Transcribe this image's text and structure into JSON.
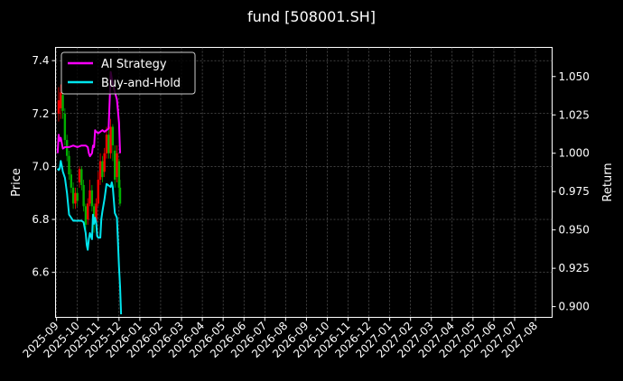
{
  "chart_data": {
    "type": "line",
    "title": "fund [508001.SH]",
    "ylabel_left": "Price",
    "ylabel_right": "Return",
    "x_ticks": [
      "2025-09",
      "2025-10",
      "2025-11",
      "2025-12",
      "2026-01",
      "2026-02",
      "2026-03",
      "2026-04",
      "2026-05",
      "2026-06",
      "2026-07",
      "2026-08",
      "2026-09",
      "2026-10",
      "2026-11",
      "2026-12",
      "2027-01",
      "2027-02",
      "2027-03",
      "2027-04",
      "2027-05",
      "2027-06",
      "2027-07",
      "2027-08"
    ],
    "y_left_ticks": [
      "6.6",
      "6.8",
      "7.0",
      "7.2",
      "7.4"
    ],
    "y_left_range": [
      6.43,
      7.45
    ],
    "y_right_ticks": [
      "0.900",
      "0.925",
      "0.950",
      "0.975",
      "1.000",
      "1.025",
      "1.050"
    ],
    "y_right_range": [
      0.893,
      1.069
    ],
    "x_range_months": [
      -0.05,
      23.8
    ],
    "grid": true,
    "legend_position": "top-left",
    "legend": [
      {
        "label": "AI Strategy",
        "color": "#ff00ff"
      },
      {
        "label": "Buy-and-Hold",
        "color": "#00e5ee"
      }
    ],
    "series": [
      {
        "name": "AI Strategy",
        "axis": "right",
        "color": "#ff00ff",
        "points": [
          [
            0.05,
            1.0
          ],
          [
            0.1,
            1.012
          ],
          [
            0.15,
            1.008
          ],
          [
            0.2,
            1.01
          ],
          [
            0.3,
            1.003
          ],
          [
            0.4,
            1.004
          ],
          [
            0.5,
            1.004
          ],
          [
            0.6,
            1.004
          ],
          [
            0.8,
            1.005
          ],
          [
            1.0,
            1.004
          ],
          [
            1.2,
            1.005
          ],
          [
            1.4,
            1.005
          ],
          [
            1.5,
            1.004
          ],
          [
            1.55,
            1.0
          ],
          [
            1.6,
            0.998
          ],
          [
            1.7,
            1.0
          ],
          [
            1.75,
            1.005
          ],
          [
            1.8,
            1.004
          ],
          [
            1.85,
            1.015
          ],
          [
            1.9,
            1.014
          ],
          [
            2.0,
            1.013
          ],
          [
            2.1,
            1.014
          ],
          [
            2.2,
            1.015
          ],
          [
            2.3,
            1.014
          ],
          [
            2.4,
            1.015
          ],
          [
            2.5,
            1.016
          ],
          [
            2.55,
            1.035
          ],
          [
            2.6,
            1.053
          ],
          [
            2.7,
            1.045
          ],
          [
            2.8,
            1.04
          ],
          [
            2.9,
            1.035
          ],
          [
            3.0,
            1.02
          ],
          [
            3.05,
            1.0
          ]
        ]
      },
      {
        "name": "Buy-and-Hold",
        "axis": "right",
        "color": "#00e5ee",
        "points": [
          [
            0.05,
            0.99
          ],
          [
            0.1,
            0.989
          ],
          [
            0.15,
            0.99
          ],
          [
            0.2,
            0.995
          ],
          [
            0.25,
            0.992
          ],
          [
            0.3,
            0.988
          ],
          [
            0.4,
            0.984
          ],
          [
            0.5,
            0.974
          ],
          [
            0.6,
            0.96
          ],
          [
            0.8,
            0.956
          ],
          [
            1.0,
            0.956
          ],
          [
            1.2,
            0.956
          ],
          [
            1.3,
            0.955
          ],
          [
            1.4,
            0.948
          ],
          [
            1.45,
            0.94
          ],
          [
            1.5,
            0.937
          ],
          [
            1.55,
            0.944
          ],
          [
            1.6,
            0.948
          ],
          [
            1.7,
            0.944
          ],
          [
            1.75,
            0.96
          ],
          [
            1.8,
            0.954
          ],
          [
            1.85,
            0.958
          ],
          [
            1.9,
            0.955
          ],
          [
            1.95,
            0.946
          ],
          [
            2.0,
            0.945
          ],
          [
            2.1,
            0.945
          ],
          [
            2.15,
            0.957
          ],
          [
            2.2,
            0.962
          ],
          [
            2.3,
            0.97
          ],
          [
            2.4,
            0.98
          ],
          [
            2.5,
            0.979
          ],
          [
            2.6,
            0.978
          ],
          [
            2.65,
            0.981
          ],
          [
            2.7,
            0.978
          ],
          [
            2.8,
            0.961
          ],
          [
            2.9,
            0.958
          ],
          [
            3.0,
            0.926
          ],
          [
            3.05,
            0.913
          ],
          [
            3.1,
            0.895
          ]
        ]
      }
    ],
    "candles": [
      {
        "x": 0.1,
        "open": 7.2,
        "close": 7.25,
        "high": 7.3,
        "low": 7.17
      },
      {
        "x": 0.2,
        "open": 7.22,
        "close": 7.28,
        "high": 7.31,
        "low": 7.18
      },
      {
        "x": 0.3,
        "open": 7.27,
        "close": 7.21,
        "high": 7.29,
        "low": 7.18
      },
      {
        "x": 0.4,
        "open": 7.2,
        "close": 7.1,
        "high": 7.22,
        "low": 7.08
      },
      {
        "x": 0.5,
        "open": 7.1,
        "close": 7.04,
        "high": 7.12,
        "low": 7.02
      },
      {
        "x": 0.6,
        "open": 7.04,
        "close": 6.97,
        "high": 7.06,
        "low": 6.95
      },
      {
        "x": 0.7,
        "open": 6.97,
        "close": 6.92,
        "high": 6.99,
        "low": 6.9
      },
      {
        "x": 0.8,
        "open": 6.92,
        "close": 6.86,
        "high": 6.94,
        "low": 6.84
      },
      {
        "x": 0.9,
        "open": 6.86,
        "close": 6.9,
        "high": 6.92,
        "low": 6.84
      },
      {
        "x": 1.0,
        "open": 6.9,
        "close": 6.87,
        "high": 6.92,
        "low": 6.85
      },
      {
        "x": 1.1,
        "open": 6.94,
        "close": 6.99,
        "high": 7.0,
        "low": 6.92
      },
      {
        "x": 1.2,
        "open": 6.99,
        "close": 6.93,
        "high": 7.0,
        "low": 6.91
      },
      {
        "x": 1.3,
        "open": 6.93,
        "close": 6.85,
        "high": 6.95,
        "low": 6.83
      },
      {
        "x": 1.4,
        "open": 6.85,
        "close": 6.78,
        "high": 6.86,
        "low": 6.76
      },
      {
        "x": 1.5,
        "open": 6.8,
        "close": 6.86,
        "high": 6.88,
        "low": 6.78
      },
      {
        "x": 1.6,
        "open": 6.86,
        "close": 6.91,
        "high": 6.95,
        "low": 6.85
      },
      {
        "x": 1.7,
        "open": 6.91,
        "close": 6.85,
        "high": 6.93,
        "low": 6.83
      },
      {
        "x": 1.8,
        "open": 6.85,
        "close": 6.79,
        "high": 6.86,
        "low": 6.75
      },
      {
        "x": 1.9,
        "open": 6.79,
        "close": 6.86,
        "high": 6.88,
        "low": 6.77
      },
      {
        "x": 2.0,
        "open": 6.86,
        "close": 6.95,
        "high": 6.98,
        "low": 6.85
      },
      {
        "x": 2.1,
        "open": 6.95,
        "close": 7.02,
        "high": 7.05,
        "low": 6.93
      },
      {
        "x": 2.2,
        "open": 7.02,
        "close": 6.96,
        "high": 7.04,
        "low": 6.94
      },
      {
        "x": 2.3,
        "open": 6.98,
        "close": 7.05,
        "high": 7.07,
        "low": 6.96
      },
      {
        "x": 2.4,
        "open": 7.05,
        "close": 7.12,
        "high": 7.15,
        "low": 7.03
      },
      {
        "x": 2.5,
        "open": 7.12,
        "close": 7.05,
        "high": 7.18,
        "low": 7.03
      },
      {
        "x": 2.6,
        "open": 7.05,
        "close": 7.15,
        "high": 7.18,
        "low": 7.03
      },
      {
        "x": 2.7,
        "open": 7.15,
        "close": 7.08,
        "high": 7.16,
        "low": 7.02
      },
      {
        "x": 2.8,
        "open": 7.06,
        "close": 6.95,
        "high": 7.08,
        "low": 6.92
      },
      {
        "x": 2.9,
        "open": 6.96,
        "close": 7.05,
        "high": 7.08,
        "low": 6.94
      },
      {
        "x": 3.0,
        "open": 7.02,
        "close": 6.92,
        "high": 7.03,
        "low": 6.89
      },
      {
        "x": 3.05,
        "open": 6.92,
        "close": 6.86,
        "high": 6.95,
        "low": 6.85
      }
    ],
    "candle_colors": {
      "up": "#ff0000",
      "down": "#00b000"
    }
  }
}
